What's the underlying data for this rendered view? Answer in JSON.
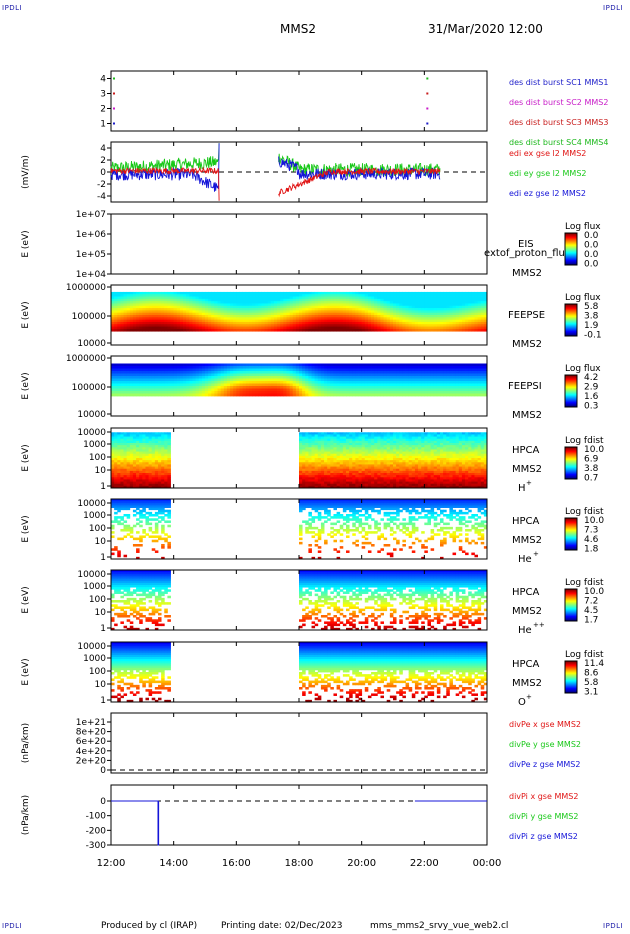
{
  "header": {
    "corner_label": "IPDLI",
    "spacecraft": "MMS2",
    "datetime": "31/Mar/2020 12:00"
  },
  "footer": {
    "produced_by": "Produced by cl (IRAP)",
    "printing_date": "Printing date: 02/Dec/2023",
    "file_name": "mms_mms2_srvy_vue_web2.cl"
  },
  "colors": {
    "mms1": "#1c1cc8",
    "mms2": "#c81cc8",
    "mms3": "#c81c1c",
    "mms4": "#1cb81c",
    "x": "#e01414",
    "y": "#18c818",
    "z": "#1414d8"
  },
  "chart_data": [
    {
      "type": "scatter",
      "panel": "burst",
      "ylabel": "",
      "ylim": [
        0.5,
        4.5
      ],
      "yticks": [
        "4",
        "3",
        "2",
        "1"
      ],
      "series": [
        {
          "name": "des dist burst SC1 MMS1",
          "color": "#1c1cc8",
          "x": [
            "12:00",
            "22:00"
          ],
          "y": [
            1,
            1
          ]
        },
        {
          "name": "des dist burst SC2 MMS2",
          "color": "#c81cc8",
          "x": [
            "12:00",
            "22:00"
          ],
          "y": [
            2,
            2
          ]
        },
        {
          "name": "des dist burst SC3 MMS3",
          "color": "#c81c1c",
          "x": [
            "12:00",
            "22:00"
          ],
          "y": [
            3,
            3
          ]
        },
        {
          "name": "des dist burst SC4 MMS4",
          "color": "#1cb81c",
          "x": [
            "12:00",
            "22:00"
          ],
          "y": [
            4,
            4
          ]
        }
      ]
    },
    {
      "type": "line",
      "panel": "edi",
      "ylabel": "(mV/m)",
      "ylim": [
        -5,
        5
      ],
      "yticks": [
        "4",
        "2",
        "0",
        "-2",
        "-4"
      ],
      "series": [
        {
          "name": "edi ex gse l2 MMS2",
          "color": "#e01414"
        },
        {
          "name": "edi ey gse l2 MMS2",
          "color": "#18c818"
        },
        {
          "name": "edi ez gse l2 MMS2",
          "color": "#1414d8"
        }
      ]
    },
    {
      "type": "heatmap",
      "panel": "eis",
      "ylabel": "E (eV)",
      "yticks": [
        "1e+07",
        "1e+06",
        "1e+05",
        "1e+04"
      ],
      "instrument": "EIS",
      "overlay": "extof_proton_flux",
      "sc": "MMS2",
      "colorbar_title": "Log flux",
      "colorbar_ticks": [
        "0.0",
        "0.0",
        "0.0",
        "0.0"
      ]
    },
    {
      "type": "heatmap",
      "panel": "feepse",
      "ylabel": "E (eV)",
      "yticks": [
        "1000000",
        "100000",
        "10000"
      ],
      "instrument": "FEEPSE",
      "sc": "MMS2",
      "colorbar_title": "Log flux",
      "colorbar_ticks": [
        "5.8",
        "3.8",
        "1.9",
        "-0.1"
      ]
    },
    {
      "type": "heatmap",
      "panel": "feepsi",
      "ylabel": "E (eV)",
      "yticks": [
        "1000000",
        "100000",
        "10000"
      ],
      "instrument": "FEEPSI",
      "sc": "MMS2",
      "colorbar_title": "Log flux",
      "colorbar_ticks": [
        "4.2",
        "2.9",
        "1.6",
        "0.3"
      ]
    },
    {
      "type": "heatmap",
      "panel": "hpca_h",
      "ylabel": "E (eV)",
      "yticks": [
        "10000",
        "1000",
        "100",
        "10",
        "1"
      ],
      "instrument": "HPCA",
      "sc": "MMS2",
      "species": "H",
      "charge": "+",
      "colorbar_title": "Log fdist",
      "colorbar_ticks": [
        "10.0",
        "6.9",
        "3.8",
        "0.7"
      ]
    },
    {
      "type": "heatmap",
      "panel": "hpca_he1",
      "ylabel": "E (eV)",
      "yticks": [
        "10000",
        "1000",
        "100",
        "10",
        "1"
      ],
      "instrument": "HPCA",
      "sc": "MMS2",
      "species": "He",
      "charge": "+",
      "colorbar_title": "Log fdist",
      "colorbar_ticks": [
        "10.0",
        "7.3",
        "4.6",
        "1.8"
      ]
    },
    {
      "type": "heatmap",
      "panel": "hpca_he2",
      "ylabel": "E (eV)",
      "yticks": [
        "10000",
        "1000",
        "100",
        "10",
        "1"
      ],
      "instrument": "HPCA",
      "sc": "MMS2",
      "species": "He",
      "charge": "++",
      "colorbar_title": "Log fdist",
      "colorbar_ticks": [
        "10.0",
        "7.2",
        "4.5",
        "1.7"
      ]
    },
    {
      "type": "heatmap",
      "panel": "hpca_o",
      "ylabel": "E (eV)",
      "yticks": [
        "10000",
        "1000",
        "100",
        "10",
        "1"
      ],
      "instrument": "HPCA",
      "sc": "MMS2",
      "species": "O",
      "charge": "+",
      "colorbar_title": "Log fdist",
      "colorbar_ticks": [
        "11.4",
        "8.6",
        "5.8",
        "3.1"
      ]
    },
    {
      "type": "line",
      "panel": "divpe",
      "ylabel": "(nPa/km)",
      "ylim": [
        0,
        1.05e+21
      ],
      "yticks": [
        "1e+21",
        "8e+20",
        "6e+20",
        "4e+20",
        "2e+20",
        "0"
      ],
      "series": [
        {
          "name": "divPe x gse MMS2",
          "color": "#e01414"
        },
        {
          "name": "divPe y gse MMS2",
          "color": "#18c818"
        },
        {
          "name": "divPe z gse MMS2",
          "color": "#1414d8"
        }
      ]
    },
    {
      "type": "line",
      "panel": "divpi",
      "ylabel": "(nPa/km)",
      "ylim": [
        -330,
        30
      ],
      "yticks": [
        "0",
        "-100",
        "-200",
        "-300"
      ],
      "series": [
        {
          "name": "divPi x gse MMS2",
          "color": "#e01414"
        },
        {
          "name": "divPi y gse MMS2",
          "color": "#18c818"
        },
        {
          "name": "divPi z gse MMS2",
          "color": "#1414d8",
          "x": [
            "12:00",
            "13:30",
            "13:30",
            "13:31",
            "13:31",
            "00:00"
          ],
          "y": [
            0,
            0,
            -300,
            -300,
            0,
            0
          ]
        }
      ]
    }
  ],
  "xaxis": {
    "ticks": [
      "12:00",
      "14:00",
      "16:00",
      "18:00",
      "20:00",
      "22:00",
      "00:00"
    ]
  }
}
